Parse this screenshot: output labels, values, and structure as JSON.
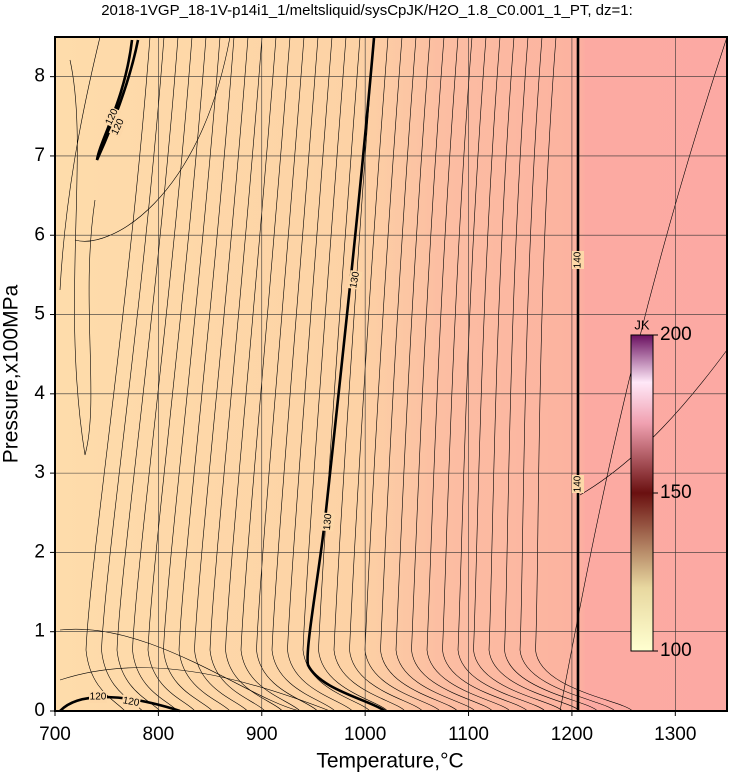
{
  "chart_data": {
    "type": "contour",
    "title": "2018-1VGP_18-1V-p14i1_1/meltsliquid/sysCpJK/H2O_1.8_C0.001_1_PT, dz=1:",
    "xlabel": "Temperature,°C",
    "ylabel": "Pressure,x100MPa",
    "xlim": [
      700,
      1350
    ],
    "ylim": [
      0,
      8.5
    ],
    "xticks": [
      700,
      800,
      900,
      1000,
      1100,
      1200,
      1300
    ],
    "yticks": [
      0,
      1,
      2,
      3,
      4,
      5,
      6,
      7,
      8
    ],
    "grid": true,
    "contours": [
      {
        "level": 120
      },
      {
        "level": 130
      },
      {
        "level": 140
      }
    ],
    "colorbar": {
      "label": "JK",
      "lim": [
        100,
        200
      ],
      "ticks": [
        100,
        150,
        200
      ]
    }
  }
}
